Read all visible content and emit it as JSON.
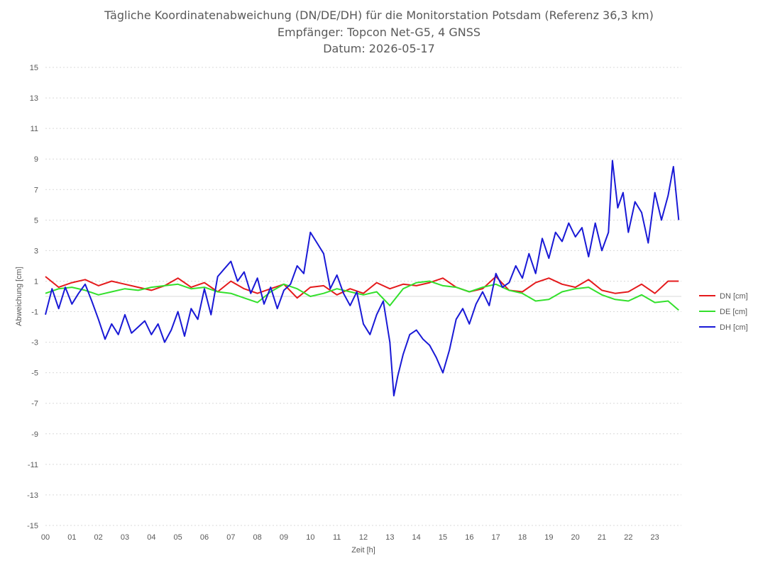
{
  "chart_data": {
    "type": "line",
    "title_lines": [
      "Tägliche Koordinatenabweichung (DN/DE/DH) für die Monitorstation Potsdam (Referenz 36,3 km)",
      "Empfänger: Topcon Net-G5, 4 GNSS",
      "Datum: 2026-05-17"
    ],
    "xlabel": "Zeit [h]",
    "ylabel": "Abweichung [cm]",
    "xlim": [
      0,
      24
    ],
    "ylim": [
      -15,
      15
    ],
    "x_ticks": [
      "00",
      "01",
      "02",
      "03",
      "04",
      "05",
      "06",
      "07",
      "08",
      "09",
      "10",
      "11",
      "12",
      "13",
      "14",
      "15",
      "16",
      "17",
      "18",
      "19",
      "20",
      "21",
      "22",
      "23"
    ],
    "y_ticks": [
      15,
      13,
      11,
      9,
      7,
      5,
      3,
      1,
      -1,
      -3,
      -5,
      -7,
      -9,
      -11,
      -13,
      -15
    ],
    "grid": "horizontal dotted",
    "legend_position": "right",
    "series": [
      {
        "name": "DN [cm]",
        "color": "#e41a1c",
        "x": [
          0,
          0.5,
          1,
          1.5,
          2,
          2.5,
          3,
          3.5,
          4,
          4.5,
          5,
          5.5,
          6,
          6.5,
          7,
          7.5,
          8,
          8.5,
          9,
          9.5,
          10,
          10.5,
          11,
          11.5,
          12,
          12.5,
          13,
          13.5,
          14,
          14.5,
          15,
          15.5,
          16,
          16.5,
          17,
          17.5,
          18,
          18.5,
          19,
          19.5,
          20,
          20.5,
          21,
          21.5,
          22,
          22.5,
          23,
          23.5,
          23.9
        ],
        "y": [
          1.3,
          0.6,
          0.9,
          1.1,
          0.7,
          1.0,
          0.8,
          0.6,
          0.4,
          0.7,
          1.2,
          0.6,
          0.9,
          0.3,
          1.0,
          0.5,
          0.2,
          0.5,
          0.8,
          -0.1,
          0.6,
          0.7,
          0.1,
          0.5,
          0.2,
          0.9,
          0.5,
          0.8,
          0.7,
          0.9,
          1.2,
          0.6,
          0.3,
          0.5,
          1.3,
          0.4,
          0.3,
          0.9,
          1.2,
          0.8,
          0.6,
          1.1,
          0.4,
          0.2,
          0.3,
          0.8,
          0.2,
          1.0,
          1.0
        ]
      },
      {
        "name": "DE [cm]",
        "color": "#33e02c",
        "x": [
          0,
          0.5,
          1,
          1.5,
          2,
          2.5,
          3,
          3.5,
          4,
          4.5,
          5,
          5.5,
          6,
          6.5,
          7,
          7.5,
          8,
          8.5,
          9,
          9.5,
          10,
          10.5,
          11,
          11.5,
          12,
          12.5,
          13,
          13.5,
          14,
          14.5,
          15,
          15.5,
          16,
          16.5,
          17,
          17.5,
          18,
          18.5,
          19,
          19.5,
          20,
          20.5,
          21,
          21.5,
          22,
          22.5,
          23,
          23.5,
          23.9
        ],
        "y": [
          0.2,
          0.5,
          0.6,
          0.4,
          0.1,
          0.3,
          0.5,
          0.4,
          0.6,
          0.7,
          0.8,
          0.5,
          0.6,
          0.3,
          0.2,
          -0.1,
          -0.4,
          0.3,
          0.8,
          0.5,
          0.0,
          0.2,
          0.5,
          0.3,
          0.1,
          0.3,
          -0.6,
          0.5,
          0.9,
          1.0,
          0.7,
          0.6,
          0.3,
          0.6,
          0.8,
          0.4,
          0.2,
          -0.3,
          -0.2,
          0.3,
          0.5,
          0.6,
          0.1,
          -0.2,
          -0.3,
          0.1,
          -0.4,
          -0.3,
          -0.9
        ]
      },
      {
        "name": "DH [cm]",
        "color": "#1919d6",
        "x": [
          0,
          0.25,
          0.5,
          0.75,
          1,
          1.25,
          1.5,
          1.75,
          2,
          2.25,
          2.5,
          2.75,
          3,
          3.25,
          3.5,
          3.75,
          4,
          4.25,
          4.5,
          4.75,
          5,
          5.25,
          5.5,
          5.75,
          6,
          6.25,
          6.5,
          6.75,
          7,
          7.25,
          7.5,
          7.75,
          8,
          8.25,
          8.5,
          8.75,
          9,
          9.25,
          9.5,
          9.75,
          10,
          10.25,
          10.5,
          10.75,
          11,
          11.25,
          11.5,
          11.75,
          12,
          12.25,
          12.5,
          12.75,
          13,
          13.15,
          13.3,
          13.5,
          13.75,
          14,
          14.25,
          14.5,
          14.75,
          15,
          15.25,
          15.5,
          15.75,
          16,
          16.25,
          16.5,
          16.75,
          17,
          17.25,
          17.5,
          17.75,
          18,
          18.25,
          18.5,
          18.75,
          19,
          19.25,
          19.5,
          19.75,
          20,
          20.25,
          20.5,
          20.75,
          21,
          21.25,
          21.4,
          21.6,
          21.8,
          22,
          22.25,
          22.5,
          22.75,
          23,
          23.25,
          23.5,
          23.7,
          23.9
        ],
        "y": [
          -1.2,
          0.5,
          -0.8,
          0.6,
          -0.5,
          0.2,
          0.8,
          -0.3,
          -1.5,
          -2.8,
          -1.8,
          -2.5,
          -1.2,
          -2.4,
          -2.0,
          -1.6,
          -2.5,
          -1.8,
          -3.0,
          -2.2,
          -1.0,
          -2.6,
          -0.8,
          -1.5,
          0.5,
          -1.2,
          1.3,
          1.8,
          2.3,
          1.0,
          1.6,
          0.2,
          1.2,
          -0.5,
          0.6,
          -0.8,
          0.4,
          0.8,
          2.0,
          1.5,
          4.2,
          3.5,
          2.8,
          0.5,
          1.4,
          0.2,
          -0.6,
          0.3,
          -1.8,
          -2.5,
          -1.2,
          -0.3,
          -3.0,
          -6.5,
          -5.2,
          -3.8,
          -2.5,
          -2.2,
          -2.8,
          -3.2,
          -4.0,
          -5.0,
          -3.5,
          -1.5,
          -0.8,
          -1.8,
          -0.5,
          0.3,
          -0.6,
          1.5,
          0.6,
          0.9,
          2.0,
          1.2,
          2.8,
          1.5,
          3.8,
          2.5,
          4.2,
          3.6,
          4.8,
          3.9,
          4.5,
          2.6,
          4.8,
          3.0,
          4.2,
          8.9,
          5.8,
          6.8,
          4.2,
          6.2,
          5.5,
          3.5,
          6.8,
          5.0,
          6.6,
          8.5,
          5.0
        ]
      }
    ]
  }
}
